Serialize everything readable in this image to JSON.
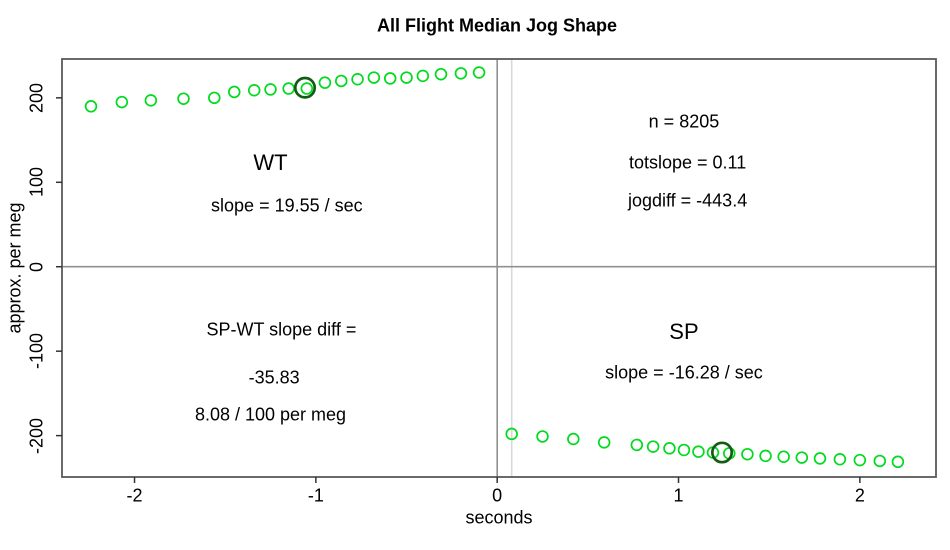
{
  "title": "All Flight Median Jog Shape",
  "chart_data": {
    "type": "scatter",
    "xlabel": "seconds",
    "ylabel": "approx. per meg",
    "xlim": [
      -2.4,
      2.42
    ],
    "ylim": [
      -249,
      246
    ],
    "x_ticks": [
      "-2",
      "-1",
      "0",
      "1",
      "2"
    ],
    "x_tick_values": [
      -2,
      -1,
      0,
      1,
      2
    ],
    "y_ticks": [
      "-200",
      "-100",
      "0",
      "100",
      "200"
    ],
    "y_tick_values": [
      -200,
      -100,
      0,
      100,
      200
    ],
    "grid": false,
    "point_color": "#00DB1F",
    "highlight_color": "#135C13",
    "ref_line_color": "#909090",
    "ref_line_light_color": "#D9D9D9",
    "series": [
      {
        "name": "WT",
        "points": [
          [
            -2.24,
            190
          ],
          [
            -2.07,
            195
          ],
          [
            -1.91,
            197
          ],
          [
            -1.73,
            199
          ],
          [
            -1.56,
            200
          ],
          [
            -1.45,
            207
          ],
          [
            -1.34,
            209
          ],
          [
            -1.25,
            210
          ],
          [
            -1.15,
            211
          ],
          [
            -1.05,
            211
          ],
          [
            -0.95,
            218
          ],
          [
            -0.86,
            220
          ],
          [
            -0.77,
            222
          ],
          [
            -0.68,
            224
          ],
          [
            -0.59,
            223
          ],
          [
            -0.5,
            224
          ],
          [
            -0.41,
            226
          ],
          [
            -0.31,
            228
          ],
          [
            -0.2,
            229
          ],
          [
            -0.1,
            230
          ]
        ]
      },
      {
        "name": "SP",
        "points": [
          [
            0.08,
            -198
          ],
          [
            0.25,
            -201
          ],
          [
            0.42,
            -204
          ],
          [
            0.59,
            -208
          ],
          [
            0.77,
            -211
          ],
          [
            0.86,
            -213
          ],
          [
            0.95,
            -215
          ],
          [
            1.03,
            -217
          ],
          [
            1.11,
            -219
          ],
          [
            1.19,
            -220
          ],
          [
            1.28,
            -221
          ],
          [
            1.38,
            -222
          ],
          [
            1.48,
            -224
          ],
          [
            1.58,
            -225
          ],
          [
            1.68,
            -226
          ],
          [
            1.78,
            -227
          ],
          [
            1.89,
            -228
          ],
          [
            2.0,
            -229
          ],
          [
            2.11,
            -230
          ],
          [
            2.21,
            -231
          ]
        ]
      }
    ],
    "highlight_points": [
      {
        "series": "WT",
        "t": -1.06,
        "v": 212
      },
      {
        "series": "SP",
        "t": 1.24,
        "v": -220
      }
    ],
    "reference_lines": {
      "horizontal": [
        0
      ],
      "vertical_dark": [
        0
      ],
      "vertical_light": [
        0.08
      ]
    },
    "annotations": [
      {
        "text": "WT",
        "t": -1.25,
        "v": 123,
        "size": "large"
      },
      {
        "text": "slope = 19.55 / sec",
        "t": -1.16,
        "v": 72,
        "size": "normal"
      },
      {
        "text": "n = 8205",
        "t": 1.03,
        "v": 171,
        "size": "normal"
      },
      {
        "text": "totslope = 0.11",
        "t": 1.05,
        "v": 123,
        "size": "normal"
      },
      {
        "text": "jogdiff = -443.4",
        "t": 1.05,
        "v": 78,
        "size": "normal"
      },
      {
        "text": "SP-WT slope diff =",
        "t": -1.19,
        "v": -75,
        "size": "normal"
      },
      {
        "text": "-35.83",
        "t": -1.23,
        "v": -132,
        "size": "normal"
      },
      {
        "text": "8.08 / 100 per meg",
        "t": -1.25,
        "v": -176,
        "size": "normal"
      },
      {
        "text": "SP",
        "t": 1.03,
        "v": -77,
        "size": "large"
      },
      {
        "text": "slope = -16.28 / sec",
        "t": 1.03,
        "v": -126,
        "size": "normal"
      }
    ]
  }
}
